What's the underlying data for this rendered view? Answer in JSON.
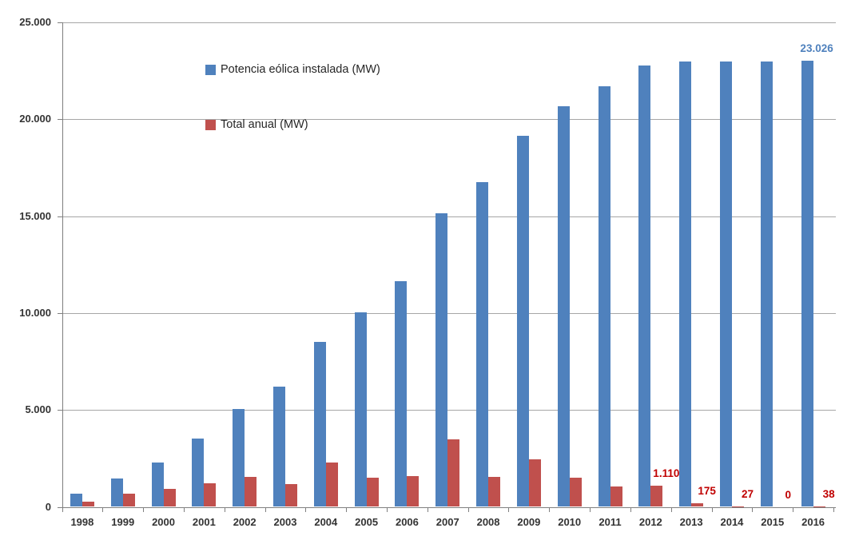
{
  "chart_data": {
    "type": "bar",
    "title": "",
    "xlabel": "",
    "ylabel": "",
    "categories": [
      "1998",
      "1999",
      "2000",
      "2001",
      "2002",
      "2003",
      "2004",
      "2005",
      "2006",
      "2007",
      "2008",
      "2009",
      "2010",
      "2011",
      "2012",
      "2013",
      "2014",
      "2015",
      "2016"
    ],
    "series": [
      {
        "name": "Potencia eólica instalada (MW)",
        "color": "#4f81bd",
        "label_color": "#4f81bd",
        "values": [
          700,
          1450,
          2300,
          3530,
          5040,
          6200,
          8500,
          10030,
          11630,
          15140,
          16740,
          19150,
          20690,
          21700,
          22790,
          22960,
          22990,
          22990,
          23026
        ],
        "data_labels": {
          "2016": "23.026"
        }
      },
      {
        "name": "Total anual (MW)",
        "color": "#c0504d",
        "label_color": "#c00000",
        "values": [
          260,
          690,
          910,
          1200,
          1560,
          1190,
          2300,
          1520,
          1600,
          3500,
          1560,
          2460,
          1500,
          1070,
          1110,
          175,
          27,
          0,
          38
        ],
        "data_labels": {
          "2012": "1.110",
          "2013": "175",
          "2014": "27",
          "2015": "0",
          "2016": "38"
        }
      }
    ],
    "ylim": [
      0,
      25000
    ],
    "y_tick_step": 5000,
    "y_tick_labels": [
      "0",
      "5.000",
      "10.000",
      "15.000",
      "20.000",
      "25.000"
    ],
    "grid": true,
    "legend_position": "inside-top-left",
    "colors": {
      "gridline": "#a6a6a6",
      "axis": "#7f7f7f",
      "tick_text": "#333333",
      "background": "#ffffff"
    }
  }
}
